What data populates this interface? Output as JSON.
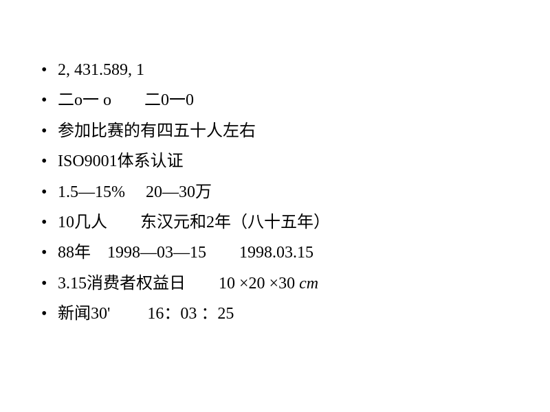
{
  "items": [
    "2, 431.589, 1",
    "二o一 o　　二0一0",
    "参加比赛的有四五十人左右",
    "ISO9001体系认证",
    "1.5—15%　 20—30万",
    "10几人　　东汉元和2年（八十五年）",
    "88年　1998—03—15　　1998.03.15",
    "3.15消费者权益日　　10 ×20 ×30 ",
    "cm_suffix",
    "新闻30'　　 16：03 ：25"
  ],
  "cm_text": "cm",
  "colors": {
    "background": "#ffffff",
    "text": "#000000"
  },
  "typography": {
    "font_family": "SimSun",
    "font_size": 24,
    "line_height": 1.85
  }
}
